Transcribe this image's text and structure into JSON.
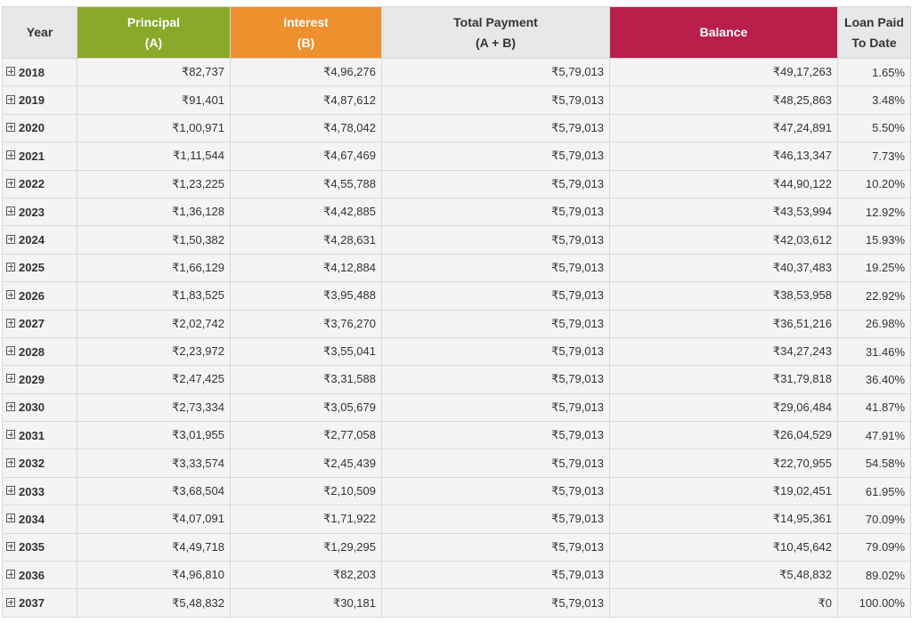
{
  "table": {
    "header": [
      {
        "lines": [
          "Year"
        ]
      },
      {
        "lines": [
          "Principal",
          "(A)"
        ]
      },
      {
        "lines": [
          "Interest",
          "(B)"
        ]
      },
      {
        "lines": [
          "Total Payment",
          "(A + B)"
        ]
      },
      {
        "lines": [
          "Balance"
        ]
      },
      {
        "lines": [
          "Loan Paid",
          "To Date"
        ]
      }
    ],
    "rows": [
      [
        "2018",
        "₹82,737",
        "₹4,96,276",
        "₹5,79,013",
        "₹49,17,263",
        "1.65%"
      ],
      [
        "2019",
        "₹91,401",
        "₹4,87,612",
        "₹5,79,013",
        "₹48,25,863",
        "3.48%"
      ],
      [
        "2020",
        "₹1,00,971",
        "₹4,78,042",
        "₹5,79,013",
        "₹47,24,891",
        "5.50%"
      ],
      [
        "2021",
        "₹1,11,544",
        "₹4,67,469",
        "₹5,79,013",
        "₹46,13,347",
        "7.73%"
      ],
      [
        "2022",
        "₹1,23,225",
        "₹4,55,788",
        "₹5,79,013",
        "₹44,90,122",
        "10.20%"
      ],
      [
        "2023",
        "₹1,36,128",
        "₹4,42,885",
        "₹5,79,013",
        "₹43,53,994",
        "12.92%"
      ],
      [
        "2024",
        "₹1,50,382",
        "₹4,28,631",
        "₹5,79,013",
        "₹42,03,612",
        "15.93%"
      ],
      [
        "2025",
        "₹1,66,129",
        "₹4,12,884",
        "₹5,79,013",
        "₹40,37,483",
        "19.25%"
      ],
      [
        "2026",
        "₹1,83,525",
        "₹3,95,488",
        "₹5,79,013",
        "₹38,53,958",
        "22.92%"
      ],
      [
        "2027",
        "₹2,02,742",
        "₹3,76,270",
        "₹5,79,013",
        "₹36,51,216",
        "26.98%"
      ],
      [
        "2028",
        "₹2,23,972",
        "₹3,55,041",
        "₹5,79,013",
        "₹34,27,243",
        "31.46%"
      ],
      [
        "2029",
        "₹2,47,425",
        "₹3,31,588",
        "₹5,79,013",
        "₹31,79,818",
        "36.40%"
      ],
      [
        "2030",
        "₹2,73,334",
        "₹3,05,679",
        "₹5,79,013",
        "₹29,06,484",
        "41.87%"
      ],
      [
        "2031",
        "₹3,01,955",
        "₹2,77,058",
        "₹5,79,013",
        "₹26,04,529",
        "47.91%"
      ],
      [
        "2032",
        "₹3,33,574",
        "₹2,45,439",
        "₹5,79,013",
        "₹22,70,955",
        "54.58%"
      ],
      [
        "2033",
        "₹3,68,504",
        "₹2,10,509",
        "₹5,79,013",
        "₹19,02,451",
        "61.95%"
      ],
      [
        "2034",
        "₹4,07,091",
        "₹1,71,922",
        "₹5,79,013",
        "₹14,95,361",
        "70.09%"
      ],
      [
        "2035",
        "₹4,49,718",
        "₹1,29,295",
        "₹5,79,013",
        "₹10,45,642",
        "79.09%"
      ],
      [
        "2036",
        "₹4,96,810",
        "₹82,203",
        "₹5,79,013",
        "₹5,48,832",
        "89.02%"
      ],
      [
        "2037",
        "₹5,48,832",
        "₹30,181",
        "₹5,79,013",
        "₹0",
        "100.00%"
      ]
    ]
  }
}
